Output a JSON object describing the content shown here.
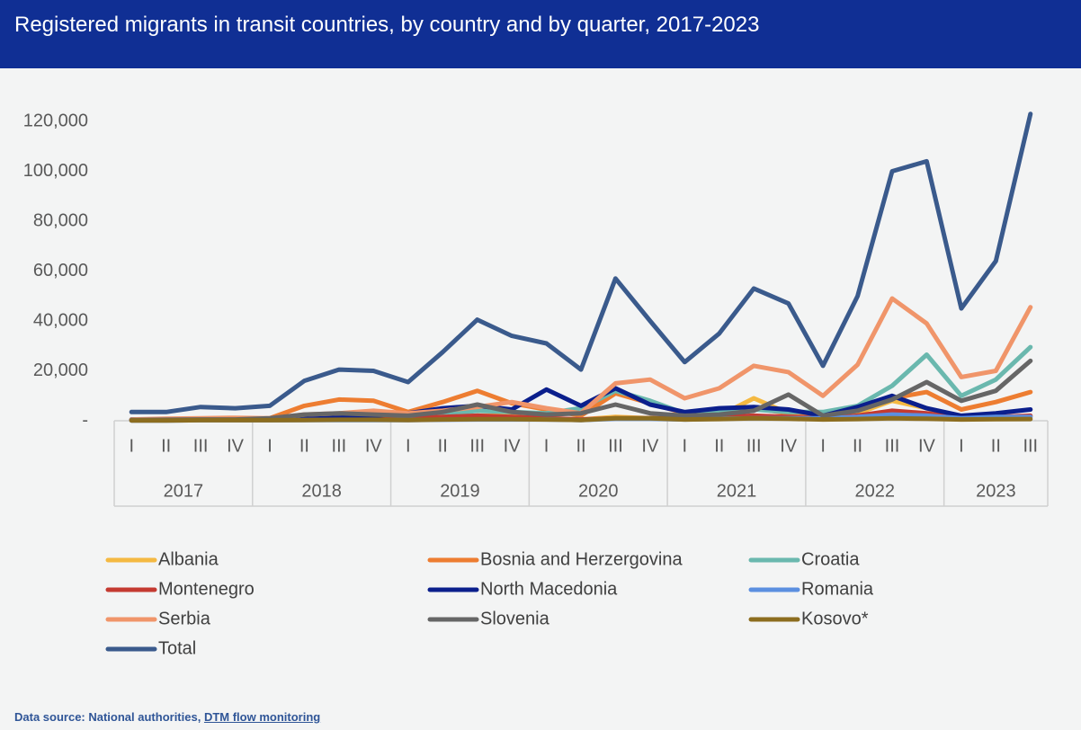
{
  "chart_data": {
    "type": "line",
    "title": "Registered migrants in transit countries, by country and by quarter, 2017-2023",
    "category_groups": [
      {
        "label": "2017",
        "quarters": [
          "I",
          "II",
          "III",
          "IV"
        ]
      },
      {
        "label": "2018",
        "quarters": [
          "I",
          "II",
          "III",
          "IV"
        ]
      },
      {
        "label": "2019",
        "quarters": [
          "I",
          "II",
          "III",
          "IV"
        ]
      },
      {
        "label": "2020",
        "quarters": [
          "I",
          "II",
          "III",
          "IV"
        ]
      },
      {
        "label": "2021",
        "quarters": [
          "I",
          "II",
          "III",
          "IV"
        ]
      },
      {
        "label": "2022",
        "quarters": [
          "I",
          "II",
          "III",
          "IV"
        ]
      },
      {
        "label": "2023",
        "quarters": [
          "I",
          "II",
          "III"
        ]
      }
    ],
    "ylim": [
      0,
      130000
    ],
    "yticks": [
      {
        "value": 0,
        "label": "-"
      },
      {
        "value": 20000,
        "label": "20,000"
      },
      {
        "value": 40000,
        "label": "40,000"
      },
      {
        "value": 60000,
        "label": "60,000"
      },
      {
        "value": 80000,
        "label": "80,000"
      },
      {
        "value": 100000,
        "label": "100,000"
      },
      {
        "value": 120000,
        "label": "120,000"
      }
    ],
    "series": [
      {
        "name": "Albania",
        "color": "#f4b942",
        "values": [
          200,
          300,
          500,
          500,
          500,
          1000,
          1500,
          1500,
          1000,
          1500,
          2000,
          2000,
          1000,
          500,
          1500,
          1000,
          1000,
          2000,
          9000,
          3000,
          1500,
          3000,
          8000,
          5000,
          1000,
          1500,
          1500
        ]
      },
      {
        "name": "Bosnia and Herzergovina",
        "color": "#ed7d31",
        "values": [
          200,
          300,
          500,
          500,
          1000,
          6000,
          8500,
          8000,
          3500,
          7500,
          12000,
          7000,
          4500,
          2000,
          11000,
          7000,
          3000,
          4000,
          5000,
          3000,
          2000,
          5000,
          9000,
          11500,
          4500,
          7500,
          11500
        ]
      },
      {
        "name": "Croatia",
        "color": "#6ab8ae",
        "values": [
          500,
          500,
          800,
          800,
          500,
          800,
          1500,
          1500,
          1500,
          2500,
          4000,
          3500,
          3000,
          5000,
          12000,
          8000,
          3000,
          3500,
          4500,
          3500,
          3500,
          6000,
          14000,
          26500,
          10000,
          16500,
          29500
        ]
      },
      {
        "name": "Montenegro",
        "color": "#c43a31",
        "values": [
          300,
          300,
          400,
          400,
          500,
          1000,
          1500,
          1500,
          1000,
          1500,
          2000,
          1500,
          1000,
          500,
          1000,
          1000,
          1000,
          1500,
          2000,
          1500,
          1000,
          2000,
          4000,
          3000,
          1000,
          1500,
          2000
        ]
      },
      {
        "name": "North Macedonia",
        "color": "#0b1f8c",
        "values": [
          500,
          500,
          500,
          500,
          500,
          1500,
          2000,
          2000,
          3000,
          5000,
          6000,
          4500,
          12500,
          6000,
          13000,
          6500,
          3500,
          5000,
          5500,
          4500,
          2000,
          5500,
          10000,
          5000,
          2000,
          3000,
          4500
        ]
      },
      {
        "name": "Romania",
        "color": "#5b8fe0",
        "values": [
          100,
          100,
          200,
          200,
          200,
          300,
          300,
          300,
          300,
          400,
          500,
          500,
          500,
          300,
          800,
          800,
          500,
          800,
          1000,
          1000,
          1000,
          1500,
          2500,
          2000,
          1000,
          1500,
          1500
        ]
      },
      {
        "name": "Serbia",
        "color": "#f0956a",
        "values": [
          500,
          800,
          1000,
          1200,
          1000,
          2500,
          3000,
          4000,
          3000,
          4000,
          5500,
          7500,
          5000,
          3000,
          15000,
          16500,
          9000,
          13000,
          22000,
          19500,
          10000,
          22500,
          49000,
          39000,
          17500,
          20000,
          45500
        ]
      },
      {
        "name": "Slovenia",
        "color": "#666666",
        "values": [
          300,
          400,
          500,
          500,
          1000,
          2500,
          3000,
          2500,
          2000,
          3500,
          6500,
          3500,
          2500,
          3000,
          6500,
          3000,
          2000,
          2500,
          4000,
          10500,
          2000,
          4000,
          8500,
          15500,
          8000,
          12000,
          24000
        ]
      },
      {
        "name": "Kosovo*",
        "color": "#8c6d1f",
        "values": [
          100,
          100,
          200,
          200,
          200,
          300,
          400,
          400,
          300,
          500,
          600,
          600,
          500,
          300,
          1000,
          1000,
          500,
          700,
          1000,
          800,
          500,
          700,
          1000,
          800,
          500,
          600,
          700
        ]
      },
      {
        "name": "Total",
        "color": "#3a5a8c",
        "values": [
          3500,
          3500,
          5500,
          5000,
          6000,
          16000,
          20500,
          20000,
          15500,
          27500,
          40500,
          34000,
          31000,
          20500,
          57000,
          40000,
          23500,
          35000,
          53000,
          47000,
          22000,
          50000,
          100000,
          104000,
          45000,
          64000,
          123000
        ]
      }
    ],
    "source": {
      "text": "Data source: National authorities,",
      "link": "DTM flow monitoring"
    }
  }
}
